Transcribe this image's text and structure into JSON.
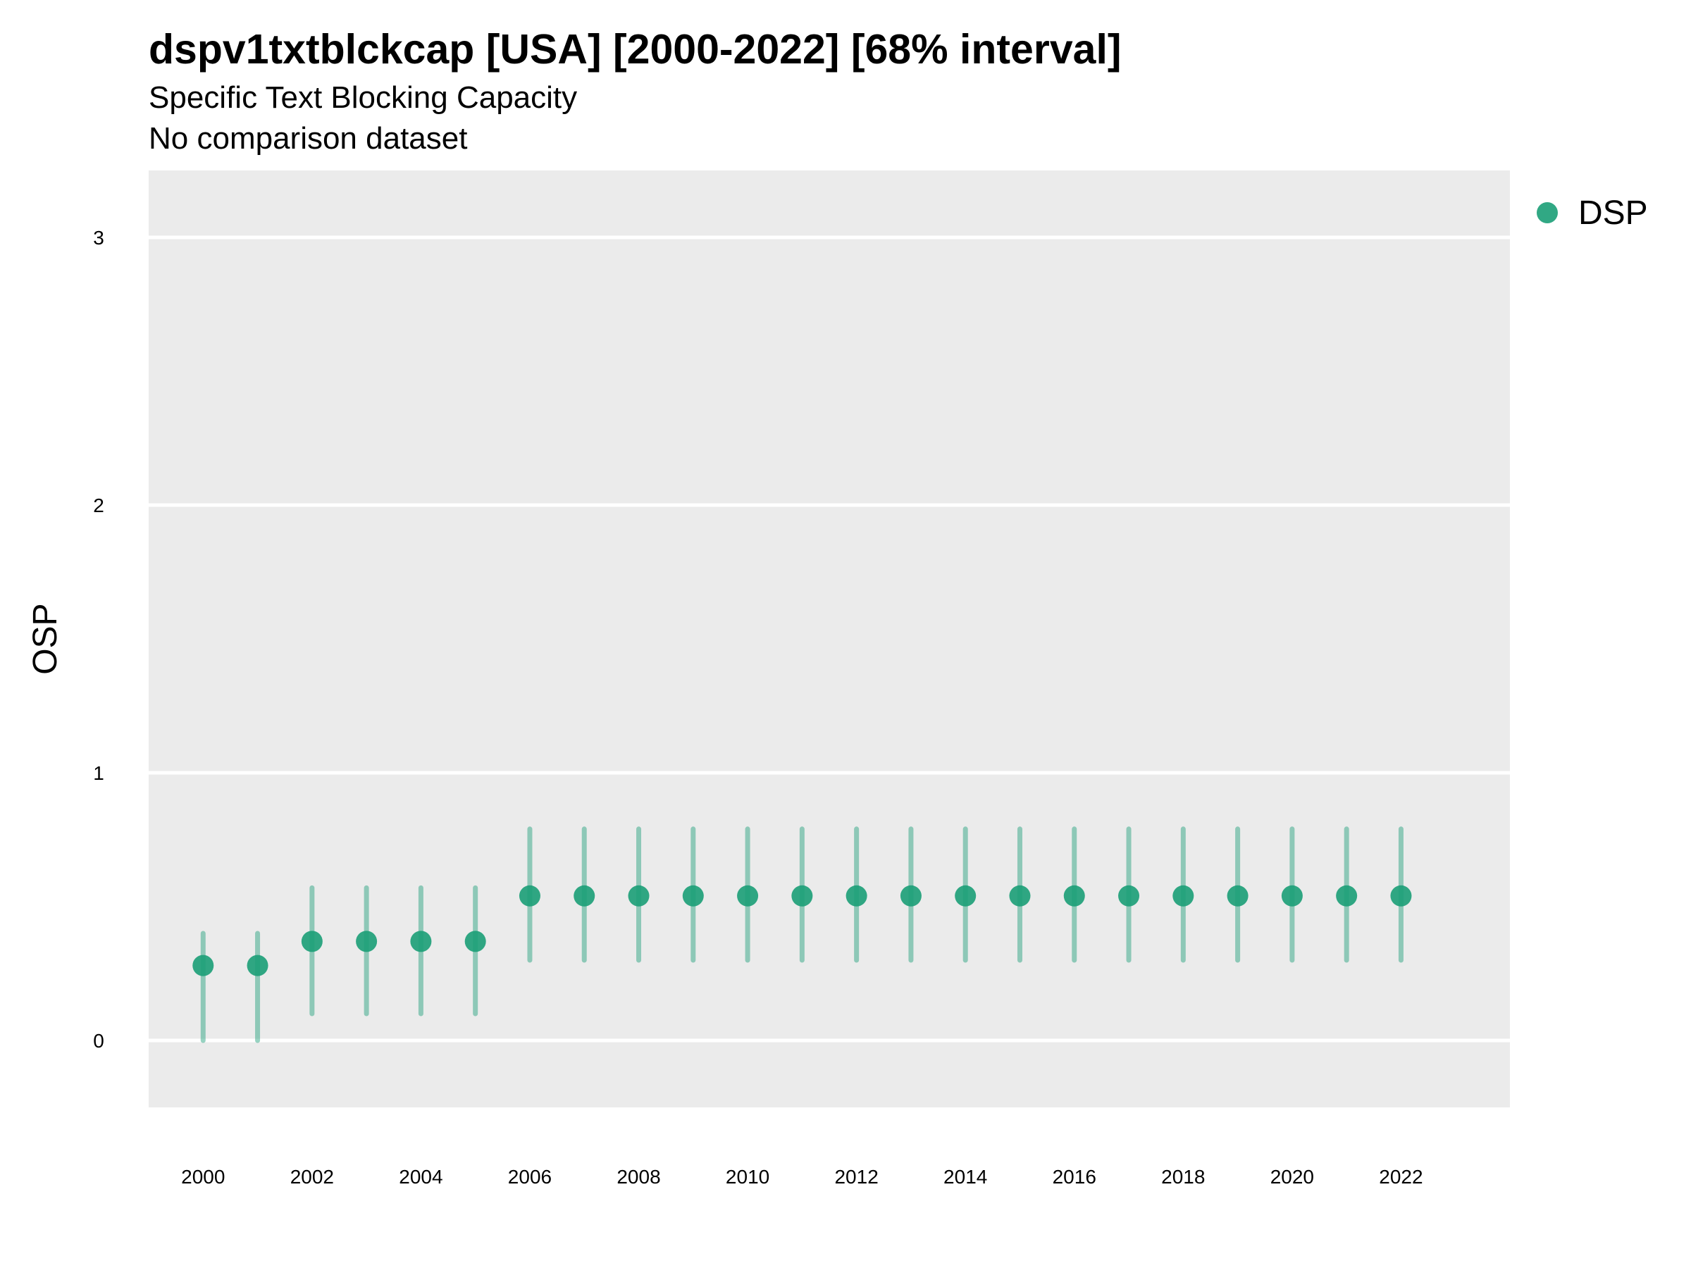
{
  "chart_data": {
    "type": "scatter",
    "title": "dspv1txtblckcap [USA] [2000-2022] [68% interval]",
    "subtitle": "Specific Text Blocking Capacity",
    "subtitle2": "No comparison dataset",
    "xlabel": "",
    "ylabel": "OSP",
    "xlim": [
      1999.0,
      2024.0
    ],
    "ylim": [
      -0.25,
      3.25
    ],
    "yticks": [
      0,
      1,
      2,
      3
    ],
    "xticks": [
      2000,
      2002,
      2004,
      2006,
      2008,
      2010,
      2012,
      2014,
      2016,
      2018,
      2020,
      2022
    ],
    "grid": true,
    "legend_position": "right",
    "colors": {
      "series": "#1b9e77",
      "panel": "#ebebeb",
      "grid": "#ffffff"
    },
    "series": [
      {
        "name": "DSP",
        "x": [
          2000,
          2001,
          2002,
          2003,
          2004,
          2005,
          2006,
          2007,
          2008,
          2009,
          2010,
          2011,
          2012,
          2013,
          2014,
          2015,
          2016,
          2017,
          2018,
          2019,
          2020,
          2021,
          2022
        ],
        "y": [
          0.28,
          0.28,
          0.37,
          0.37,
          0.37,
          0.37,
          0.54,
          0.54,
          0.54,
          0.54,
          0.54,
          0.54,
          0.54,
          0.54,
          0.54,
          0.54,
          0.54,
          0.54,
          0.54,
          0.54,
          0.54,
          0.54,
          0.54
        ],
        "lower": [
          0.0,
          0.0,
          0.1,
          0.1,
          0.1,
          0.1,
          0.3,
          0.3,
          0.3,
          0.3,
          0.3,
          0.3,
          0.3,
          0.3,
          0.3,
          0.3,
          0.3,
          0.3,
          0.3,
          0.3,
          0.3,
          0.3,
          0.3
        ],
        "upper": [
          0.4,
          0.4,
          0.57,
          0.57,
          0.57,
          0.57,
          0.79,
          0.79,
          0.79,
          0.79,
          0.79,
          0.79,
          0.79,
          0.79,
          0.79,
          0.79,
          0.79,
          0.79,
          0.79,
          0.79,
          0.79,
          0.79,
          0.79
        ]
      }
    ]
  }
}
